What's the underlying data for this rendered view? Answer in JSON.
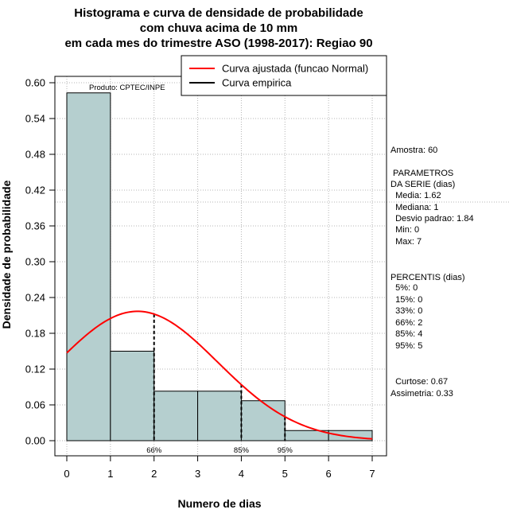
{
  "chart_data": {
    "type": "bar",
    "title_lines": [
      "Histograma e curva de densidade de probabilidade",
      "com chuva acima de 10 mm",
      "em cada mes do trimestre ASO (1998-2017): Regiao 90"
    ],
    "xlabel": "Numero de dias",
    "ylabel": "Densidade de probabilidade",
    "xlim": [
      0,
      7
    ],
    "ylim": [
      0,
      0.6
    ],
    "x_ticks": [
      0,
      1,
      2,
      3,
      4,
      5,
      6,
      7
    ],
    "x_tick_labels": [
      "0",
      "1",
      "2",
      "3",
      "4",
      "5",
      "6",
      "7"
    ],
    "y_ticks": [
      0,
      0.06,
      0.12,
      0.18,
      0.24,
      0.3,
      0.36,
      0.42,
      0.48,
      0.54,
      0.6
    ],
    "y_tick_labels": [
      "0.00",
      "0.06",
      "0.12",
      "0.18",
      "0.24",
      "0.30",
      "0.36",
      "0.42",
      "0.48",
      "0.54",
      "0.60"
    ],
    "bins": [
      {
        "x0": 0,
        "x1": 1,
        "density": 0.583
      },
      {
        "x0": 1,
        "x1": 2,
        "density": 0.15
      },
      {
        "x0": 2,
        "x1": 3,
        "density": 0.083
      },
      {
        "x0": 3,
        "x1": 4,
        "density": 0.083
      },
      {
        "x0": 4,
        "x1": 5,
        "density": 0.067
      },
      {
        "x0": 5,
        "x1": 6,
        "density": 0.017
      },
      {
        "x0": 6,
        "x1": 7,
        "density": 0.017
      }
    ],
    "normal_fit": {
      "mean": 1.62,
      "sd": 1.84
    },
    "percentile_markers": [
      {
        "x": 2,
        "label": "66%"
      },
      {
        "x": 4,
        "label": "85%"
      },
      {
        "x": 5,
        "label": "95%"
      }
    ],
    "legend": [
      {
        "label": "Curva ajustada (funcao Normal)",
        "color": "#ff0000"
      },
      {
        "label": "Curva empirica",
        "color": "#000000"
      }
    ],
    "legend_position": "top-right",
    "product_label": "Produto: CPTEC/INPE",
    "reference_line_y": 0.4,
    "colors": {
      "bar_fill": "#b5cfcf",
      "fit_line": "#ff0000",
      "grid": "#b4b4b4"
    }
  },
  "stats_panel": [
    "Amostra: 60",
    " PARAMETROS",
    "DA SERIE (dias)",
    "  Media: 1.62",
    "  Mediana: 1",
    "  Desvio padrao: 1.84",
    "  Min: 0",
    "  Max: 7",
    "PERCENTIS (dias)",
    "  5%: 0",
    "  15%: 0",
    "  33%: 0",
    "  66%: 2",
    "  85%: 4",
    "  95%: 5",
    "  Curtose: 0.67",
    "Assimetria: 0.33"
  ]
}
